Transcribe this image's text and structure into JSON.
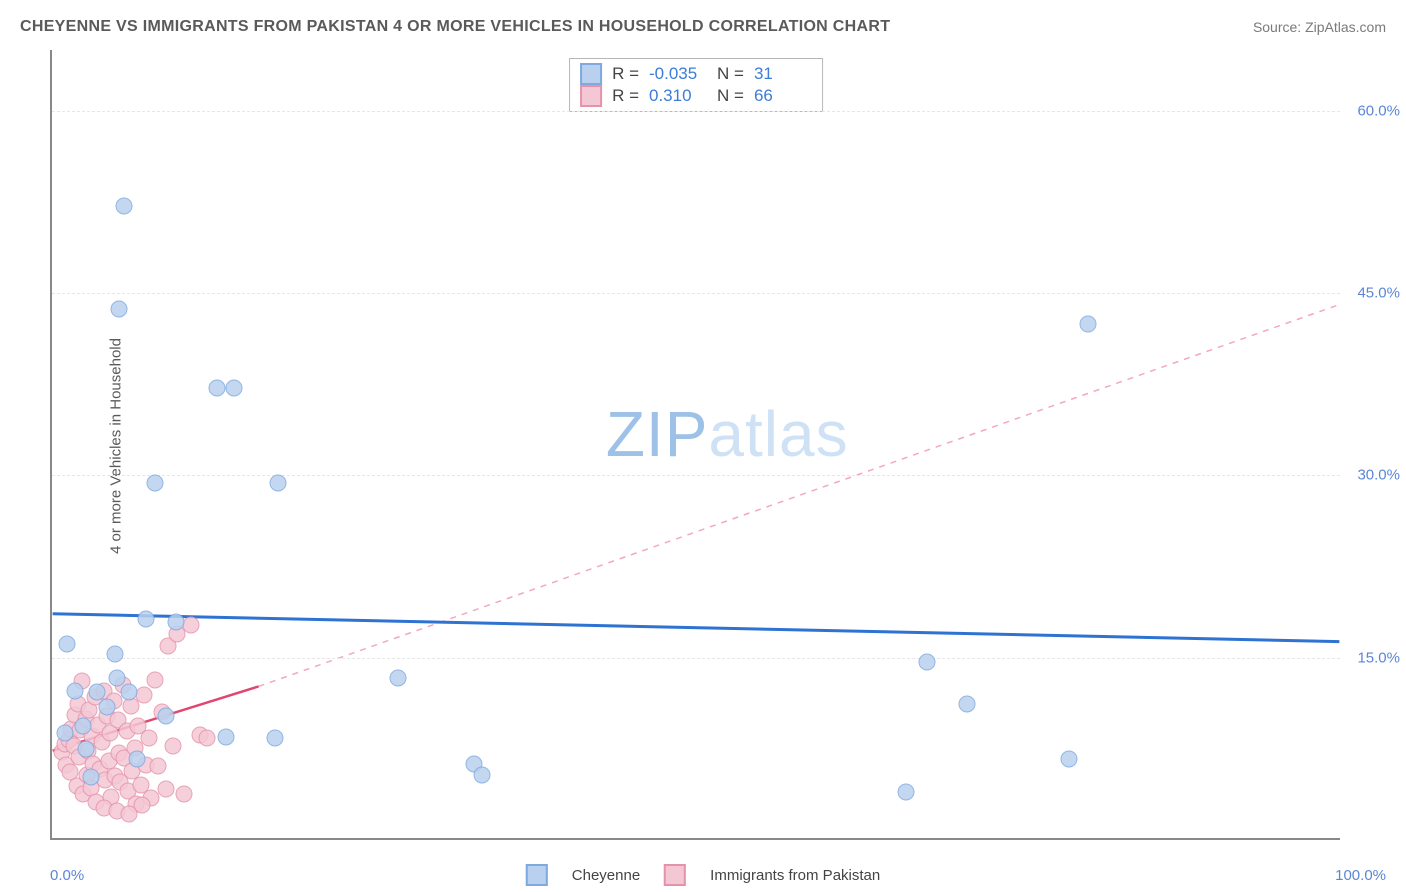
{
  "title": "CHEYENNE VS IMMIGRANTS FROM PAKISTAN 4 OR MORE VEHICLES IN HOUSEHOLD CORRELATION CHART",
  "source": "Source: ZipAtlas.com",
  "ylabel": "4 or more Vehicles in Household",
  "watermark_zip": "ZIP",
  "watermark_atlas": "atlas",
  "chart": {
    "type": "scatter",
    "xlim": [
      0,
      100
    ],
    "ylim": [
      0,
      65
    ],
    "xticks": [
      {
        "v": 0,
        "lab": "0.0%"
      },
      {
        "v": 100,
        "lab": "100.0%"
      }
    ],
    "yticks": [
      {
        "v": 15,
        "lab": "15.0%"
      },
      {
        "v": 30,
        "lab": "30.0%"
      },
      {
        "v": 45,
        "lab": "45.0%"
      },
      {
        "v": 60,
        "lab": "60.0%"
      }
    ],
    "background_color": "#ffffff",
    "grid_color": "#e6e6e6",
    "axis_color": "#888888",
    "tick_text_color": "#5b86d6",
    "marker_radius": 8.5,
    "marker_stroke_width": 1.4,
    "marker_fill_opacity": 0.32,
    "series": {
      "cheyenne": {
        "label": "Cheyenne",
        "stroke": "#7fa9df",
        "fill": "#b9d1ef",
        "R": "-0.035",
        "N": "31",
        "trend": {
          "x0": 0,
          "y0": 18.5,
          "x1": 100,
          "y1": 16.2,
          "color": "#2e72d2",
          "width": 3,
          "dash": "none"
        },
        "points": [
          {
            "x": 5.6,
            "y": 52.0
          },
          {
            "x": 5.2,
            "y": 43.5
          },
          {
            "x": 12.8,
            "y": 37.0
          },
          {
            "x": 14.1,
            "y": 37.0
          },
          {
            "x": 8.0,
            "y": 29.2
          },
          {
            "x": 17.5,
            "y": 29.2
          },
          {
            "x": 7.3,
            "y": 18.0
          },
          {
            "x": 9.6,
            "y": 17.8
          },
          {
            "x": 1.2,
            "y": 16.0
          },
          {
            "x": 5.0,
            "y": 13.2
          },
          {
            "x": 1.8,
            "y": 12.1
          },
          {
            "x": 3.5,
            "y": 12.0
          },
          {
            "x": 6.0,
            "y": 12.0
          },
          {
            "x": 2.4,
            "y": 9.2
          },
          {
            "x": 4.3,
            "y": 10.8
          },
          {
            "x": 13.5,
            "y": 8.3
          },
          {
            "x": 17.3,
            "y": 8.2
          },
          {
            "x": 26.8,
            "y": 13.2
          },
          {
            "x": 32.7,
            "y": 6.1
          },
          {
            "x": 33.3,
            "y": 5.2
          },
          {
            "x": 67.8,
            "y": 14.5
          },
          {
            "x": 70.9,
            "y": 11.0
          },
          {
            "x": 66.2,
            "y": 3.8
          },
          {
            "x": 78.8,
            "y": 6.5
          },
          {
            "x": 80.3,
            "y": 42.3
          },
          {
            "x": 1.0,
            "y": 8.6
          },
          {
            "x": 2.6,
            "y": 7.3
          },
          {
            "x": 6.6,
            "y": 6.5
          },
          {
            "x": 3.0,
            "y": 5.0
          },
          {
            "x": 4.9,
            "y": 15.1
          },
          {
            "x": 8.8,
            "y": 10.0
          }
        ]
      },
      "pakistan": {
        "label": "Immigrants from Pakistan",
        "stroke": "#e593ab",
        "fill": "#f4c7d4",
        "R": "0.310",
        "N": "66",
        "trend_solid": {
          "x0": 0,
          "y0": 7.2,
          "x1": 16,
          "y1": 12.5,
          "color": "#e2456e",
          "width": 2.5
        },
        "trend_dashed": {
          "x0": 16,
          "y0": 12.5,
          "x1": 100,
          "y1": 44.0,
          "color": "#f2a9ba",
          "width": 1.5,
          "dash": "6,6"
        },
        "points": [
          {
            "x": 0.8,
            "y": 7.1
          },
          {
            "x": 1.0,
            "y": 7.7
          },
          {
            "x": 1.1,
            "y": 6.0
          },
          {
            "x": 1.3,
            "y": 8.1
          },
          {
            "x": 1.4,
            "y": 5.4
          },
          {
            "x": 1.5,
            "y": 9.0
          },
          {
            "x": 1.7,
            "y": 7.6
          },
          {
            "x": 1.8,
            "y": 10.1
          },
          {
            "x": 1.9,
            "y": 4.3
          },
          {
            "x": 2.0,
            "y": 11.0
          },
          {
            "x": 2.1,
            "y": 6.7
          },
          {
            "x": 2.2,
            "y": 8.9
          },
          {
            "x": 2.3,
            "y": 12.9
          },
          {
            "x": 2.4,
            "y": 3.6
          },
          {
            "x": 2.6,
            "y": 9.8
          },
          {
            "x": 2.7,
            "y": 5.2
          },
          {
            "x": 2.8,
            "y": 7.2
          },
          {
            "x": 2.9,
            "y": 10.5
          },
          {
            "x": 3.0,
            "y": 4.1
          },
          {
            "x": 3.1,
            "y": 8.4
          },
          {
            "x": 3.2,
            "y": 6.1
          },
          {
            "x": 3.3,
            "y": 11.6
          },
          {
            "x": 3.4,
            "y": 3.0
          },
          {
            "x": 3.6,
            "y": 9.3
          },
          {
            "x": 3.7,
            "y": 5.7
          },
          {
            "x": 3.9,
            "y": 7.9
          },
          {
            "x": 4.0,
            "y": 12.1
          },
          {
            "x": 4.1,
            "y": 4.8
          },
          {
            "x": 4.3,
            "y": 10.0
          },
          {
            "x": 4.4,
            "y": 6.3
          },
          {
            "x": 4.5,
            "y": 8.6
          },
          {
            "x": 4.6,
            "y": 3.4
          },
          {
            "x": 4.8,
            "y": 11.3
          },
          {
            "x": 4.9,
            "y": 5.1
          },
          {
            "x": 5.1,
            "y": 9.7
          },
          {
            "x": 5.2,
            "y": 7.0
          },
          {
            "x": 5.3,
            "y": 4.6
          },
          {
            "x": 5.5,
            "y": 12.6
          },
          {
            "x": 5.6,
            "y": 6.6
          },
          {
            "x": 5.8,
            "y": 8.8
          },
          {
            "x": 5.9,
            "y": 3.9
          },
          {
            "x": 6.1,
            "y": 10.9
          },
          {
            "x": 6.2,
            "y": 5.5
          },
          {
            "x": 6.4,
            "y": 7.4
          },
          {
            "x": 6.5,
            "y": 2.8
          },
          {
            "x": 6.7,
            "y": 9.2
          },
          {
            "x": 6.9,
            "y": 4.4
          },
          {
            "x": 7.1,
            "y": 11.8
          },
          {
            "x": 7.3,
            "y": 6.0
          },
          {
            "x": 7.5,
            "y": 8.2
          },
          {
            "x": 7.7,
            "y": 3.3
          },
          {
            "x": 8.0,
            "y": 13.0
          },
          {
            "x": 8.2,
            "y": 5.9
          },
          {
            "x": 8.5,
            "y": 10.4
          },
          {
            "x": 8.8,
            "y": 4.0
          },
          {
            "x": 9.0,
            "y": 15.8
          },
          {
            "x": 9.4,
            "y": 7.6
          },
          {
            "x": 9.7,
            "y": 16.8
          },
          {
            "x": 10.2,
            "y": 3.6
          },
          {
            "x": 10.8,
            "y": 17.5
          },
          {
            "x": 11.5,
            "y": 8.5
          },
          {
            "x": 12.0,
            "y": 8.2
          },
          {
            "x": 4.0,
            "y": 2.5
          },
          {
            "x": 5.0,
            "y": 2.2
          },
          {
            "x": 6.0,
            "y": 2.0
          },
          {
            "x": 7.0,
            "y": 2.7
          }
        ]
      }
    }
  }
}
